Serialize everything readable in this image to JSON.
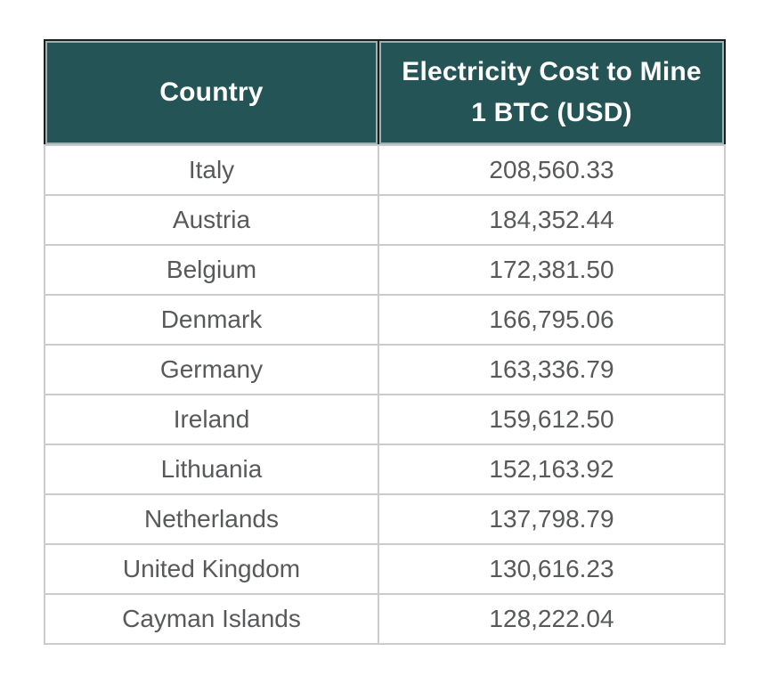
{
  "colors": {
    "header_bg": "#255456",
    "header_text": "#ffffff",
    "header_border": "#1d1d1d",
    "header_inner_highlight": "#b0bdbc",
    "body_text": "#58595b",
    "row_border": "#cccccc",
    "page_bg": "#ffffff"
  },
  "table": {
    "columns": [
      {
        "label": "Country"
      },
      {
        "label": "Electricity Cost to Mine 1 BTC (USD)"
      }
    ],
    "rows": [
      {
        "country": "Italy",
        "cost": "208,560.33"
      },
      {
        "country": "Austria",
        "cost": "184,352.44"
      },
      {
        "country": "Belgium",
        "cost": "172,381.50"
      },
      {
        "country": "Denmark",
        "cost": "166,795.06"
      },
      {
        "country": "Germany",
        "cost": "163,336.79"
      },
      {
        "country": "Ireland",
        "cost": "159,612.50"
      },
      {
        "country": "Lithuania",
        "cost": "152,163.92"
      },
      {
        "country": "Netherlands",
        "cost": "137,798.79"
      },
      {
        "country": "United Kingdom",
        "cost": "130,616.23"
      },
      {
        "country": "Cayman Islands",
        "cost": "128,222.04"
      }
    ]
  },
  "chart_data": {
    "type": "table",
    "title": "Electricity Cost to Mine 1 BTC (USD)",
    "columns": [
      "Country",
      "Electricity Cost to Mine 1 BTC (USD)"
    ],
    "rows": [
      [
        "Italy",
        208560.33
      ],
      [
        "Austria",
        184352.44
      ],
      [
        "Belgium",
        172381.5
      ],
      [
        "Denmark",
        166795.06
      ],
      [
        "Germany",
        163336.79
      ],
      [
        "Ireland",
        159612.5
      ],
      [
        "Lithuania",
        152163.92
      ],
      [
        "Netherlands",
        137798.79
      ],
      [
        "United Kingdom",
        130616.23
      ],
      [
        "Cayman Islands",
        128222.04
      ]
    ]
  }
}
